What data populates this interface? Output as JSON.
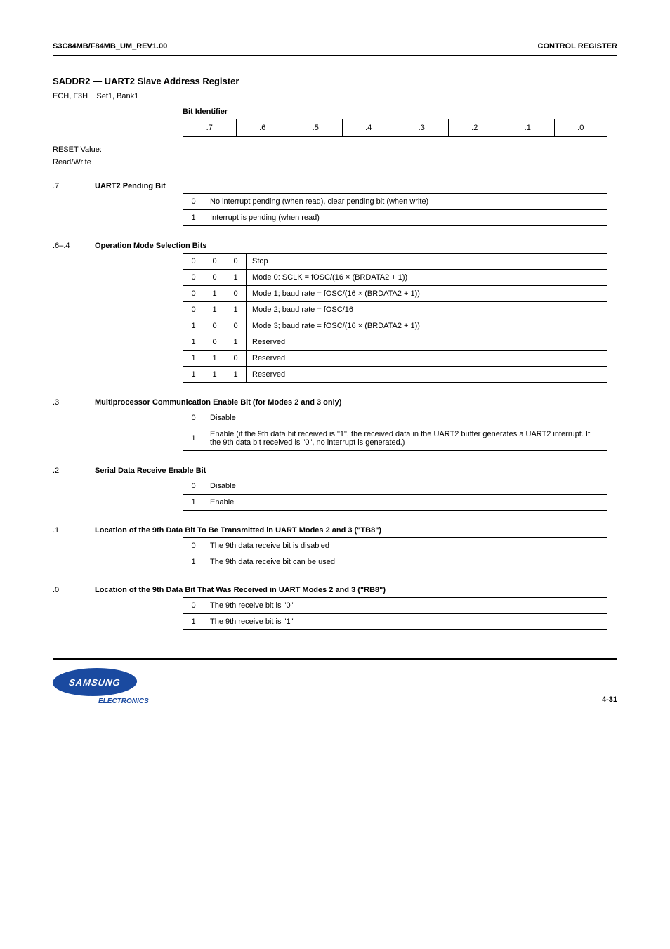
{
  "header": {
    "left": "S3C84MB/F84MB_UM_REV1.00",
    "right": "CONTROL REGISTER"
  },
  "section": {
    "title": "SADDR2 — UART2 Slave Address Register",
    "reg_addr": "ECH, F3H",
    "reg_page": "Set1, Bank1",
    "reset_label": "Bit Identifier",
    "bits": [
      ".7",
      ".6",
      ".5",
      ".4",
      ".3",
      ".2",
      ".1",
      ".0"
    ],
    "caption_left": "RESET Value:",
    "caption_right": "Read/Write"
  },
  "fields": [
    {
      "bitspec": ".7",
      "title": "UART2 Pending Bit",
      "columns": 2,
      "rows": [
        [
          "0",
          "No interrupt pending (when read), clear pending bit (when write)"
        ],
        [
          "1",
          "Interrupt is pending (when read)"
        ]
      ]
    },
    {
      "bitspec": ".6–.4",
      "title": "Operation Mode Selection Bits",
      "columns": 4,
      "rows": [
        [
          "0",
          "0",
          "0",
          "Stop"
        ],
        [
          "0",
          "0",
          "1",
          "Mode 0: SCLK = fOSC/(16 × (BRDATA2 + 1))"
        ],
        [
          "0",
          "1",
          "0",
          "Mode 1; baud rate = fOSC/(16 × (BRDATA2 + 1))"
        ],
        [
          "0",
          "1",
          "1",
          "Mode 2; baud rate = fOSC/16"
        ],
        [
          "1",
          "0",
          "0",
          "Mode 3; baud rate = fOSC/(16 × (BRDATA2 + 1))"
        ],
        [
          "1",
          "0",
          "1",
          "Reserved"
        ],
        [
          "1",
          "1",
          "0",
          "Reserved"
        ],
        [
          "1",
          "1",
          "1",
          "Reserved"
        ]
      ]
    },
    {
      "bitspec": ".3",
      "title": "Multiprocessor Communication Enable Bit (for Modes 2 and 3 only)",
      "columns": 2,
      "rows": [
        [
          "0",
          "Disable"
        ],
        [
          "1",
          "Enable (if the 9th data bit received is \"1\", the received data in the UART2 buffer generates a UART2 interrupt. If the 9th data bit received is \"0\", no interrupt is generated.)"
        ]
      ]
    },
    {
      "bitspec": ".2",
      "title": "Serial Data Receive Enable Bit",
      "columns": 2,
      "rows": [
        [
          "0",
          "Disable"
        ],
        [
          "1",
          "Enable"
        ]
      ]
    },
    {
      "bitspec": ".1",
      "title": "Location of the 9th Data Bit To Be Transmitted in UART Modes 2 and 3 (\"TB8\")",
      "columns": 2,
      "rows": [
        [
          "0",
          "The 9th data receive bit is disabled"
        ],
        [
          "1",
          "The 9th data receive bit can be used"
        ]
      ]
    },
    {
      "bitspec": ".0",
      "title": "Location of the 9th Data Bit That Was Received in UART Modes 2 and 3 (\"RB8\")",
      "columns": 2,
      "rows": [
        [
          "0",
          "The 9th receive bit is \"0\""
        ],
        [
          "1",
          "The 9th receive bit is \"1\""
        ]
      ]
    }
  ],
  "footer": {
    "logo_text": "SAMSUNG",
    "logo_sub": "ELECTRONICS",
    "page_number": "4-31"
  }
}
